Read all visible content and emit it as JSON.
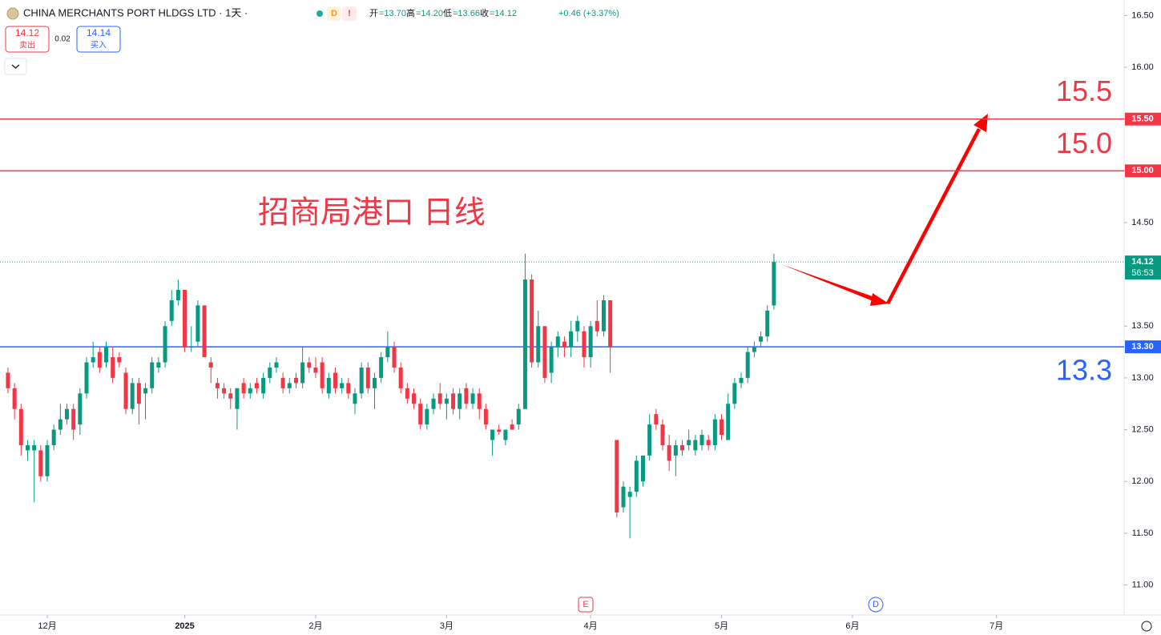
{
  "header": {
    "symbol": "CHINA MERCHANTS PORT HLDGS LTD · 1天 ·",
    "flags": [
      "D",
      "!"
    ],
    "quote": [
      {
        "label": "开",
        "value": "=13.70"
      },
      {
        "label": "高",
        "value": "=14.20"
      },
      {
        "label": "低",
        "value": "=13.66"
      },
      {
        "label": "收",
        "value": "=14.12"
      }
    ],
    "change": "+0.46 (+3.37%)",
    "sell": {
      "price": "14.12",
      "label": "卖出"
    },
    "spread": "0.02",
    "buy": {
      "price": "14.14",
      "label": "买入"
    }
  },
  "chart_data": {
    "type": "candlestick",
    "title": "招商局港口 日线",
    "up_color": "#089981",
    "down_color": "#f23645",
    "xlim": [
      -1.22,
      170.5
    ],
    "xticks": [
      {
        "value": 6,
        "label": "12月"
      },
      {
        "value": 27,
        "label": "2025"
      },
      {
        "value": 47,
        "label": "2月"
      },
      {
        "value": 67,
        "label": "3月"
      },
      {
        "value": 89,
        "label": "4月"
      },
      {
        "value": 109,
        "label": "5月"
      },
      {
        "value": 129,
        "label": "6月"
      },
      {
        "value": 151,
        "label": "7月"
      }
    ],
    "ylim": [
      10.71,
      16.65
    ],
    "yticks": [
      {
        "value": 11,
        "label": "11.00"
      },
      {
        "value": 11.5,
        "label": "11.50"
      },
      {
        "value": 12,
        "label": "12.00"
      },
      {
        "value": 12.5,
        "label": "12.50"
      },
      {
        "value": 13,
        "label": "13.00"
      },
      {
        "value": 13.5,
        "label": "13.50"
      },
      {
        "value": 14,
        "label": "14.00"
      },
      {
        "value": 14.5,
        "label": "14.50"
      },
      {
        "value": 15,
        "label": "15.00"
      },
      {
        "value": 15.5,
        "label": "15.50"
      },
      {
        "value": 16,
        "label": "16.00"
      },
      {
        "value": 16.5,
        "label": "16.50"
      }
    ],
    "open": [
      13.05,
      12.9,
      12.7,
      12.3,
      12.3,
      12.3,
      12.05,
      12.35,
      12.5,
      12.6,
      12.7,
      12.55,
      12.85,
      13.15,
      13.25,
      13.15,
      13.2,
      13.2,
      13.05,
      12.7,
      12.95,
      12.85,
      12.9,
      13.1,
      13.15,
      13.55,
      13.75,
      13.85,
      13.3,
      13.35,
      13.7,
      13.15,
      12.95,
      12.9,
      12.85,
      12.7,
      12.95,
      12.85,
      12.95,
      12.85,
      13.0,
      13.1,
      13.0,
      12.9,
      13.0,
      12.95,
      13.15,
      13.1,
      13.15,
      12.85,
      13.05,
      12.9,
      12.95,
      12.75,
      12.85,
      13.1,
      12.9,
      13.0,
      13.2,
      13.3,
      13.1,
      12.9,
      12.85,
      12.75,
      12.55,
      12.7,
      12.85,
      12.75,
      12.85,
      12.7,
      12.9,
      12.75,
      12.85,
      12.7,
      12.4,
      12.5,
      12.4,
      12.55,
      12.55,
      12.7,
      13.95,
      13.15,
      13.5,
      13.05,
      13.3,
      13.35,
      13.3,
      13.45,
      13.45,
      13.2,
      13.55,
      13.45,
      13.75,
      12.4,
      11.75,
      11.85,
      11.9,
      12.0,
      12.25,
      12.65,
      12.55,
      12.35,
      12.25,
      12.35,
      12.35,
      12.3,
      12.35,
      12.4,
      12.35,
      12.6,
      12.4,
      12.75,
      12.95,
      13.0,
      13.25,
      13.35,
      13.4,
      13.7
    ],
    "high": [
      13.1,
      12.95,
      12.75,
      12.4,
      12.4,
      12.35,
      12.4,
      12.55,
      12.75,
      12.75,
      12.75,
      12.9,
      13.2,
      13.35,
      13.3,
      13.35,
      13.3,
      13.25,
      13.1,
      13.0,
      13.0,
      12.95,
      13.2,
      13.2,
      13.55,
      13.85,
      13.95,
      13.85,
      13.5,
      13.75,
      13.7,
      13.2,
      13.0,
      12.95,
      12.9,
      12.9,
      13.0,
      12.95,
      13.0,
      13.05,
      13.15,
      13.2,
      13.05,
      13.0,
      13.05,
      13.3,
      13.2,
      13.2,
      13.2,
      13.05,
      13.1,
      13.0,
      13.0,
      12.9,
      13.15,
      13.15,
      13.05,
      13.25,
      13.45,
      13.35,
      13.15,
      12.95,
      12.9,
      12.8,
      12.75,
      12.85,
      12.95,
      12.85,
      12.9,
      12.9,
      12.95,
      12.9,
      12.9,
      12.75,
      12.5,
      12.55,
      12.5,
      12.6,
      12.75,
      14.2,
      14.0,
      13.65,
      13.5,
      13.35,
      13.45,
      13.4,
      13.55,
      13.6,
      13.5,
      13.55,
      13.75,
      13.8,
      13.75,
      12.4,
      12.0,
      11.95,
      12.25,
      12.25,
      12.65,
      12.7,
      12.6,
      12.45,
      12.4,
      12.4,
      12.5,
      12.45,
      12.5,
      12.45,
      12.65,
      12.65,
      12.85,
      13.0,
      13.05,
      13.3,
      13.35,
      13.45,
      13.7,
      14.2
    ],
    "low": [
      12.85,
      12.6,
      12.25,
      12.2,
      11.8,
      12.0,
      12.0,
      12.3,
      12.45,
      12.55,
      12.4,
      12.45,
      12.8,
      13.1,
      13.05,
      13.1,
      12.95,
      13.1,
      12.65,
      12.65,
      12.55,
      12.6,
      12.85,
      13.05,
      13.1,
      13.5,
      13.7,
      13.25,
      13.25,
      13.3,
      13.2,
      12.95,
      12.8,
      12.8,
      12.7,
      12.5,
      12.8,
      12.8,
      12.85,
      12.8,
      12.95,
      13.05,
      12.85,
      12.85,
      12.9,
      12.9,
      13.05,
      13.0,
      12.85,
      12.8,
      12.85,
      12.85,
      12.8,
      12.65,
      12.8,
      12.85,
      12.7,
      12.95,
      13.15,
      13.05,
      12.85,
      12.75,
      12.7,
      12.5,
      12.5,
      12.65,
      12.7,
      12.6,
      12.65,
      12.6,
      12.7,
      12.7,
      12.6,
      12.5,
      12.25,
      12.45,
      12.35,
      12.5,
      12.5,
      12.7,
      13.1,
      13.1,
      12.95,
      12.95,
      13.2,
      13.2,
      13.2,
      13.35,
      13.1,
      13.1,
      13.4,
      13.4,
      13.05,
      11.65,
      11.7,
      11.45,
      11.85,
      11.95,
      12.2,
      12.5,
      12.3,
      12.1,
      12.05,
      12.25,
      12.3,
      12.25,
      12.3,
      12.3,
      12.3,
      12.4,
      12.4,
      12.7,
      12.9,
      12.95,
      13.2,
      13.3,
      13.35,
      13.66
    ],
    "close": [
      12.9,
      12.7,
      12.35,
      12.35,
      12.35,
      12.05,
      12.35,
      12.5,
      12.6,
      12.7,
      12.5,
      12.85,
      13.15,
      13.2,
      13.1,
      13.3,
      13.0,
      13.15,
      12.7,
      12.95,
      12.75,
      12.9,
      13.15,
      13.15,
      13.5,
      13.75,
      13.85,
      13.3,
      13.3,
      13.7,
      13.2,
      13.1,
      12.9,
      12.85,
      12.8,
      12.9,
      12.85,
      12.9,
      12.9,
      13.0,
      13.1,
      13.15,
      12.9,
      12.95,
      12.95,
      13.15,
      13.1,
      13.05,
      12.9,
      13.0,
      12.9,
      12.95,
      12.85,
      12.85,
      13.1,
      12.9,
      13.0,
      13.2,
      13.3,
      13.1,
      12.9,
      12.8,
      12.75,
      12.55,
      12.7,
      12.8,
      12.75,
      12.8,
      12.7,
      12.85,
      12.75,
      12.85,
      12.7,
      12.55,
      12.5,
      12.48,
      12.5,
      12.5,
      12.7,
      13.95,
      13.15,
      13.5,
      13.0,
      13.3,
      13.4,
      13.3,
      13.45,
      13.55,
      13.2,
      13.5,
      13.45,
      13.75,
      13.3,
      11.7,
      11.95,
      11.9,
      12.2,
      12.25,
      12.55,
      12.55,
      12.35,
      12.2,
      12.35,
      12.3,
      12.4,
      12.4,
      12.45,
      12.35,
      12.6,
      12.45,
      12.75,
      12.95,
      13.0,
      13.25,
      13.3,
      13.4,
      13.65,
      14.12
    ],
    "levels": [
      {
        "value": 15.5,
        "axis_label": "15.50",
        "annotation": "15.5",
        "color": "#f23645"
      },
      {
        "value": 15.0,
        "axis_label": "15.00",
        "annotation": "15.0",
        "color": "#f23645"
      },
      {
        "value": 13.3,
        "axis_label": "13.30",
        "annotation": "13.3",
        "color": "#2962ff"
      }
    ],
    "last_price": {
      "value": 14.12,
      "countdown": "56:53",
      "color": "#089981"
    },
    "events": [
      "E",
      "D"
    ]
  }
}
